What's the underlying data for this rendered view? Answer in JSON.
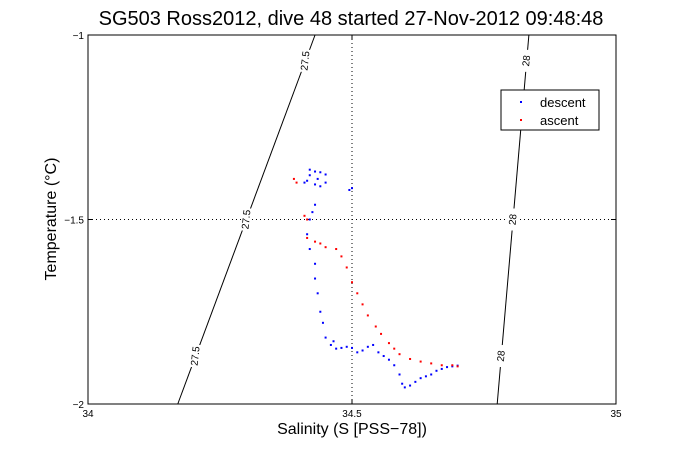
{
  "chart_data": {
    "type": "scatter",
    "title": "SG503 Ross2012, dive 48 started 27-Nov-2012 09:48:48",
    "xlabel": "Salinity (S [PSS−78])",
    "ylabel": "Temperature (°C)",
    "xlim": [
      34,
      35
    ],
    "ylim": [
      -2,
      -1
    ],
    "x_ticks": [
      "34",
      "34.5",
      "35"
    ],
    "y_ticks": [
      "−1",
      "−1.5",
      "−2"
    ],
    "grid": "dotted, at 34.5 and −1.5",
    "legend_position": "top-right",
    "colors": {
      "descent": "#0000ff",
      "ascent": "#ff0000",
      "axes": "#000000"
    },
    "contours": [
      {
        "label": "27.5",
        "x_top": 34.43,
        "x_bottom": 34.17
      },
      {
        "label": "28",
        "x_top": 34.835,
        "x_bottom": 34.775
      }
    ],
    "series": [
      {
        "name": "descent",
        "points": [
          [
            34.42,
            -1.365
          ],
          [
            34.43,
            -1.37
          ],
          [
            34.44,
            -1.372
          ],
          [
            34.45,
            -1.378
          ],
          [
            34.435,
            -1.39
          ],
          [
            34.42,
            -1.38
          ],
          [
            34.415,
            -1.395
          ],
          [
            34.41,
            -1.4
          ],
          [
            34.45,
            -1.4
          ],
          [
            34.44,
            -1.41
          ],
          [
            34.43,
            -1.405
          ],
          [
            34.5,
            -1.415
          ],
          [
            34.495,
            -1.42
          ],
          [
            34.43,
            -1.46
          ],
          [
            34.425,
            -1.48
          ],
          [
            34.42,
            -1.5
          ],
          [
            34.415,
            -1.54
          ],
          [
            34.42,
            -1.58
          ],
          [
            34.43,
            -1.62
          ],
          [
            34.43,
            -1.66
          ],
          [
            34.435,
            -1.7
          ],
          [
            34.44,
            -1.75
          ],
          [
            34.445,
            -1.78
          ],
          [
            34.45,
            -1.82
          ],
          [
            34.46,
            -1.84
          ],
          [
            34.465,
            -1.83
          ],
          [
            34.47,
            -1.85
          ],
          [
            34.48,
            -1.848
          ],
          [
            34.49,
            -1.845
          ],
          [
            34.5,
            -1.848
          ],
          [
            34.51,
            -1.86
          ],
          [
            34.52,
            -1.855
          ],
          [
            34.53,
            -1.845
          ],
          [
            34.54,
            -1.84
          ],
          [
            34.55,
            -1.86
          ],
          [
            34.56,
            -1.87
          ],
          [
            34.57,
            -1.88
          ],
          [
            34.58,
            -1.895
          ],
          [
            34.59,
            -1.92
          ],
          [
            34.595,
            -1.945
          ],
          [
            34.6,
            -1.955
          ],
          [
            34.61,
            -1.95
          ],
          [
            34.62,
            -1.94
          ],
          [
            34.63,
            -1.93
          ],
          [
            34.64,
            -1.925
          ],
          [
            34.65,
            -1.92
          ],
          [
            34.66,
            -1.91
          ],
          [
            34.67,
            -1.905
          ],
          [
            34.68,
            -1.9
          ],
          [
            34.69,
            -1.898
          ],
          [
            34.7,
            -1.896
          ]
        ]
      },
      {
        "name": "ascent",
        "points": [
          [
            34.39,
            -1.39
          ],
          [
            34.395,
            -1.4
          ],
          [
            34.41,
            -1.49
          ],
          [
            34.415,
            -1.5
          ],
          [
            34.415,
            -1.55
          ],
          [
            34.43,
            -1.56
          ],
          [
            34.44,
            -1.565
          ],
          [
            34.45,
            -1.575
          ],
          [
            34.47,
            -1.58
          ],
          [
            34.48,
            -1.6
          ],
          [
            34.49,
            -1.63
          ],
          [
            34.5,
            -1.67
          ],
          [
            34.51,
            -1.7
          ],
          [
            34.52,
            -1.73
          ],
          [
            34.53,
            -1.76
          ],
          [
            34.545,
            -1.79
          ],
          [
            34.555,
            -1.81
          ],
          [
            34.57,
            -1.835
          ],
          [
            34.58,
            -1.85
          ],
          [
            34.59,
            -1.865
          ],
          [
            34.61,
            -1.878
          ],
          [
            34.63,
            -1.885
          ],
          [
            34.65,
            -1.89
          ],
          [
            34.67,
            -1.895
          ],
          [
            34.69,
            -1.895
          ],
          [
            34.7,
            -1.898
          ]
        ]
      }
    ]
  }
}
